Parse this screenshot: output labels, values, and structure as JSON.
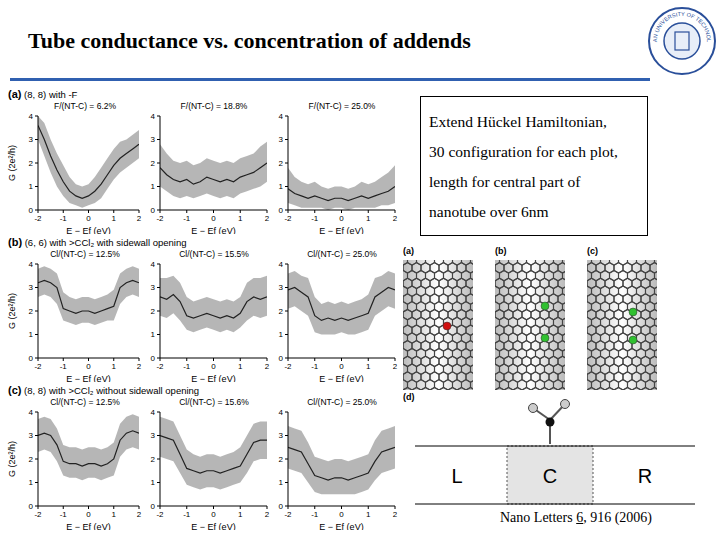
{
  "slide": {
    "title": "Tube conductance vs. concentration of addends",
    "logo_text": "DALIAN UNIVERSITY OF TECHNOLOGY",
    "rows": [
      {
        "label": "(a)",
        "caption": "(8, 8) with -F"
      },
      {
        "label": "(b)",
        "caption": "(6, 6) with >CCl₂ with sidewall opening"
      },
      {
        "label": "(c)",
        "caption": "(8, 8) with >CCl₂ without sidewall opening"
      }
    ],
    "info": [
      "Extend Hückel Hamiltonian,",
      "30 configuration for each plot,",
      "length for central part of",
      "nanotube over 6nm"
    ],
    "structures": [
      "(a)",
      "(b)",
      "(c)"
    ],
    "diagram": {
      "label": "(d)",
      "boxes": [
        "L",
        "C",
        "R"
      ]
    },
    "citation": {
      "journal": "Nano Letters",
      "volume": "6",
      "rest": ", 916 (2006)"
    }
  },
  "chart_data": [
    {
      "type": "line",
      "title": "F/(NT-C) = 6.2%",
      "xlabel": "E − Ef (eV)",
      "ylabel": "G (2e²/h)",
      "xlim": [
        -2,
        2
      ],
      "ylim": [
        0,
        4
      ],
      "xticks": [
        -2,
        -1,
        0,
        1,
        2
      ],
      "yticks": [
        0,
        1,
        2,
        3,
        4
      ],
      "line_style": "solid",
      "color": "#222222",
      "x": [
        -2,
        -1.75,
        -1.5,
        -1.25,
        -1,
        -0.75,
        -0.5,
        -0.25,
        0,
        0.25,
        0.5,
        0.75,
        1,
        1.25,
        1.5,
        1.75,
        2
      ],
      "values": [
        3.6,
        3.0,
        2.3,
        1.7,
        1.2,
        0.8,
        0.6,
        0.5,
        0.6,
        0.8,
        1.1,
        1.5,
        1.9,
        2.2,
        2.4,
        2.6,
        2.8
      ],
      "lower": [
        3.0,
        2.3,
        1.6,
        1.0,
        0.6,
        0.3,
        0.2,
        0.1,
        0.2,
        0.3,
        0.5,
        0.9,
        1.3,
        1.6,
        1.8,
        2.0,
        2.2
      ],
      "upper": [
        4.0,
        3.7,
        3.0,
        2.4,
        1.9,
        1.4,
        1.1,
        1.0,
        1.1,
        1.4,
        1.8,
        2.2,
        2.6,
        2.9,
        3.0,
        3.2,
        3.4
      ]
    },
    {
      "type": "line",
      "title": "F/(NT-C) = 18.8%",
      "xlabel": "E − Ef (eV)",
      "xlim": [
        -2,
        2
      ],
      "ylim": [
        0,
        4
      ],
      "xticks": [
        -2,
        -1,
        0,
        1,
        2
      ],
      "yticks": [
        0,
        1,
        2,
        3,
        4
      ],
      "line_style": "solid",
      "color": "#222222",
      "x": [
        -2,
        -1.75,
        -1.5,
        -1.25,
        -1,
        -0.75,
        -0.5,
        -0.25,
        0,
        0.25,
        0.5,
        0.75,
        1,
        1.25,
        1.5,
        1.75,
        2
      ],
      "values": [
        1.8,
        1.5,
        1.3,
        1.2,
        1.3,
        1.1,
        1.2,
        1.4,
        1.3,
        1.2,
        1.3,
        1.2,
        1.4,
        1.5,
        1.6,
        1.8,
        2.0
      ],
      "lower": [
        1.0,
        0.8,
        0.6,
        0.5,
        0.6,
        0.5,
        0.6,
        0.7,
        0.6,
        0.5,
        0.6,
        0.5,
        0.7,
        0.8,
        0.9,
        1.0,
        1.2
      ],
      "upper": [
        2.8,
        2.4,
        2.1,
        2.0,
        2.1,
        1.9,
        2.0,
        2.2,
        2.1,
        2.0,
        2.1,
        2.0,
        2.2,
        2.3,
        2.4,
        2.7,
        2.9
      ]
    },
    {
      "type": "line",
      "title": "F/(NT-C) = 25.0%",
      "xlabel": "E − Ef (eV)",
      "xlim": [
        -2,
        2
      ],
      "ylim": [
        0,
        4
      ],
      "xticks": [
        -2,
        -1,
        0,
        1,
        2
      ],
      "yticks": [
        0,
        1,
        2,
        3,
        4
      ],
      "line_style": "solid",
      "color": "#222222",
      "x": [
        -2,
        -1.75,
        -1.5,
        -1.25,
        -1,
        -0.75,
        -0.5,
        -0.25,
        0,
        0.25,
        0.5,
        0.75,
        1,
        1.25,
        1.5,
        1.75,
        2
      ],
      "values": [
        0.9,
        0.7,
        0.6,
        0.5,
        0.6,
        0.5,
        0.4,
        0.5,
        0.5,
        0.4,
        0.5,
        0.6,
        0.5,
        0.6,
        0.7,
        0.8,
        1.0
      ],
      "lower": [
        0.3,
        0.2,
        0.1,
        0.1,
        0.1,
        0.1,
        0.0,
        0.1,
        0.1,
        0.0,
        0.1,
        0.1,
        0.1,
        0.1,
        0.2,
        0.2,
        0.3
      ],
      "upper": [
        1.8,
        1.4,
        1.2,
        1.1,
        1.2,
        1.0,
        0.9,
        1.0,
        1.0,
        0.9,
        1.0,
        1.2,
        1.1,
        1.2,
        1.4,
        1.6,
        1.9
      ]
    },
    {
      "type": "line",
      "title": "Cl/(NT-C) = 12.5%",
      "xlabel": "E − Ef (eV)",
      "ylabel": "G (2e²/h)",
      "xlim": [
        -2,
        2
      ],
      "ylim": [
        0,
        4
      ],
      "xticks": [
        -2,
        -1,
        0,
        1,
        2
      ],
      "yticks": [
        0,
        1,
        2,
        3,
        4
      ],
      "line_style": "solid",
      "color": "#222222",
      "x": [
        -2,
        -1.75,
        -1.5,
        -1.25,
        -1,
        -0.75,
        -0.5,
        -0.25,
        0,
        0.25,
        0.5,
        0.75,
        1,
        1.25,
        1.5,
        1.75,
        2
      ],
      "values": [
        3.2,
        3.3,
        3.2,
        3.0,
        2.1,
        2.0,
        1.9,
        2.0,
        2.0,
        1.9,
        2.0,
        2.1,
        2.2,
        3.0,
        3.2,
        3.3,
        3.2
      ],
      "lower": [
        2.6,
        2.7,
        2.6,
        2.3,
        1.6,
        1.5,
        1.4,
        1.5,
        1.5,
        1.4,
        1.5,
        1.6,
        1.6,
        2.3,
        2.6,
        2.7,
        2.6
      ],
      "upper": [
        3.8,
        3.9,
        3.8,
        3.6,
        2.8,
        2.6,
        2.5,
        2.6,
        2.6,
        2.5,
        2.6,
        2.7,
        2.9,
        3.6,
        3.8,
        3.9,
        3.8
      ]
    },
    {
      "type": "line",
      "title": "Cl/(NT-C) = 15.5%",
      "xlabel": "E − Ef (eV)",
      "xlim": [
        -2,
        2
      ],
      "ylim": [
        0,
        4
      ],
      "xticks": [
        -2,
        -1,
        0,
        1,
        2
      ],
      "yticks": [
        0,
        1,
        2,
        3,
        4
      ],
      "line_style": "solid",
      "color": "#222222",
      "x": [
        -2,
        -1.75,
        -1.5,
        -1.25,
        -1,
        -0.75,
        -0.5,
        -0.25,
        0,
        0.25,
        0.5,
        0.75,
        1,
        1.25,
        1.5,
        1.75,
        2
      ],
      "values": [
        2.6,
        2.5,
        2.7,
        2.4,
        1.8,
        1.7,
        1.8,
        1.9,
        1.8,
        1.7,
        1.8,
        1.7,
        1.9,
        2.4,
        2.6,
        2.5,
        2.6
      ],
      "lower": [
        1.8,
        1.7,
        1.9,
        1.6,
        1.2,
        1.1,
        1.2,
        1.3,
        1.2,
        1.1,
        1.2,
        1.1,
        1.3,
        1.6,
        1.8,
        1.7,
        1.8
      ],
      "upper": [
        3.4,
        3.4,
        3.5,
        3.2,
        2.6,
        2.4,
        2.5,
        2.6,
        2.5,
        2.4,
        2.5,
        2.4,
        2.6,
        3.2,
        3.4,
        3.4,
        3.5
      ]
    },
    {
      "type": "line",
      "title": "Cl/(NT-C) = 25.0%",
      "xlabel": "E − Ef (eV)",
      "xlim": [
        -2,
        2
      ],
      "ylim": [
        0,
        4
      ],
      "xticks": [
        -2,
        -1,
        0,
        1,
        2
      ],
      "yticks": [
        0,
        1,
        2,
        3,
        4
      ],
      "line_style": "solid",
      "color": "#222222",
      "x": [
        -2,
        -1.75,
        -1.5,
        -1.25,
        -1,
        -0.75,
        -0.5,
        -0.25,
        0,
        0.25,
        0.5,
        0.75,
        1,
        1.25,
        1.5,
        1.75,
        2
      ],
      "values": [
        2.9,
        3.0,
        2.8,
        2.6,
        1.8,
        1.6,
        1.7,
        1.6,
        1.7,
        1.6,
        1.7,
        1.8,
        1.9,
        2.6,
        2.8,
        3.0,
        2.9
      ],
      "lower": [
        2.1,
        2.2,
        2.0,
        1.8,
        1.1,
        1.0,
        1.0,
        1.0,
        1.1,
        1.0,
        1.0,
        1.1,
        1.2,
        1.8,
        2.0,
        2.2,
        2.1
      ],
      "upper": [
        3.6,
        3.7,
        3.5,
        3.4,
        2.6,
        2.3,
        2.4,
        2.3,
        2.4,
        2.3,
        2.4,
        2.5,
        2.7,
        3.4,
        3.5,
        3.7,
        3.6
      ]
    },
    {
      "type": "line",
      "title": "Cl/(NT-C) = 12.5%",
      "xlabel": "E − Ef (eV)",
      "ylabel": "G (2e²/h)",
      "xlim": [
        -2,
        2
      ],
      "ylim": [
        0,
        4
      ],
      "xticks": [
        -2,
        -1,
        0,
        1,
        2
      ],
      "yticks": [
        0,
        1,
        2,
        3,
        4
      ],
      "line_style": "solid",
      "color": "#222222",
      "x": [
        -2,
        -1.75,
        -1.5,
        -1.25,
        -1,
        -0.75,
        -0.5,
        -0.25,
        0,
        0.25,
        0.5,
        0.75,
        1,
        1.25,
        1.5,
        1.75,
        2
      ],
      "values": [
        3.0,
        3.1,
        3.0,
        2.6,
        1.9,
        1.8,
        1.8,
        1.7,
        1.8,
        1.8,
        1.7,
        1.8,
        2.0,
        2.8,
        3.1,
        3.2,
        3.1
      ],
      "lower": [
        2.3,
        2.4,
        2.3,
        1.9,
        1.3,
        1.2,
        1.2,
        1.1,
        1.2,
        1.2,
        1.1,
        1.2,
        1.3,
        2.1,
        2.4,
        2.5,
        2.4
      ],
      "upper": [
        3.7,
        3.8,
        3.7,
        3.3,
        2.6,
        2.5,
        2.5,
        2.4,
        2.5,
        2.5,
        2.4,
        2.5,
        2.7,
        3.5,
        3.8,
        3.9,
        3.8
      ]
    },
    {
      "type": "line",
      "title": "Cl/(NT-C) = 15.6%",
      "xlabel": "E − Ef (eV)",
      "xlim": [
        -2,
        2
      ],
      "ylim": [
        0,
        4
      ],
      "xticks": [
        -2,
        -1,
        0,
        1,
        2
      ],
      "yticks": [
        0,
        1,
        2,
        3,
        4
      ],
      "line_style": "solid",
      "color": "#222222",
      "x": [
        -2,
        -1.75,
        -1.5,
        -1.25,
        -1,
        -0.75,
        -0.5,
        -0.25,
        0,
        0.25,
        0.5,
        0.75,
        1,
        1.25,
        1.5,
        1.75,
        2
      ],
      "values": [
        3.0,
        2.9,
        2.8,
        2.2,
        1.6,
        1.5,
        1.4,
        1.5,
        1.5,
        1.4,
        1.5,
        1.6,
        1.7,
        2.2,
        2.7,
        2.8,
        2.8
      ],
      "lower": [
        2.1,
        2.0,
        1.9,
        1.4,
        0.9,
        0.8,
        0.7,
        0.8,
        0.8,
        0.7,
        0.8,
        0.9,
        1.0,
        1.4,
        1.9,
        2.0,
        2.0
      ],
      "upper": [
        3.8,
        3.7,
        3.6,
        3.0,
        2.4,
        2.2,
        2.1,
        2.2,
        2.2,
        2.1,
        2.2,
        2.3,
        2.5,
        3.0,
        3.5,
        3.6,
        3.6
      ]
    },
    {
      "type": "line",
      "title": "Cl/(NT-C) = 25.0%",
      "xlabel": "E − Ef (eV)",
      "xlim": [
        -2,
        2
      ],
      "ylim": [
        0,
        4
      ],
      "xticks": [
        -2,
        -1,
        0,
        1,
        2
      ],
      "yticks": [
        0,
        1,
        2,
        3,
        4
      ],
      "line_style": "solid",
      "color": "#222222",
      "x": [
        -2,
        -1.75,
        -1.5,
        -1.25,
        -1,
        -0.75,
        -0.5,
        -0.25,
        0,
        0.25,
        0.5,
        0.75,
        1,
        1.25,
        1.5,
        1.75,
        2
      ],
      "values": [
        2.5,
        2.4,
        2.3,
        1.8,
        1.3,
        1.2,
        1.1,
        1.2,
        1.2,
        1.1,
        1.2,
        1.3,
        1.4,
        1.9,
        2.3,
        2.4,
        2.5
      ],
      "lower": [
        1.6,
        1.5,
        1.4,
        1.0,
        0.6,
        0.5,
        0.5,
        0.5,
        0.5,
        0.5,
        0.5,
        0.6,
        0.7,
        1.1,
        1.4,
        1.5,
        1.6
      ],
      "upper": [
        3.4,
        3.3,
        3.2,
        2.7,
        2.1,
        2.0,
        1.9,
        2.0,
        2.0,
        1.9,
        2.0,
        2.1,
        2.2,
        2.8,
        3.2,
        3.3,
        3.4
      ]
    }
  ]
}
